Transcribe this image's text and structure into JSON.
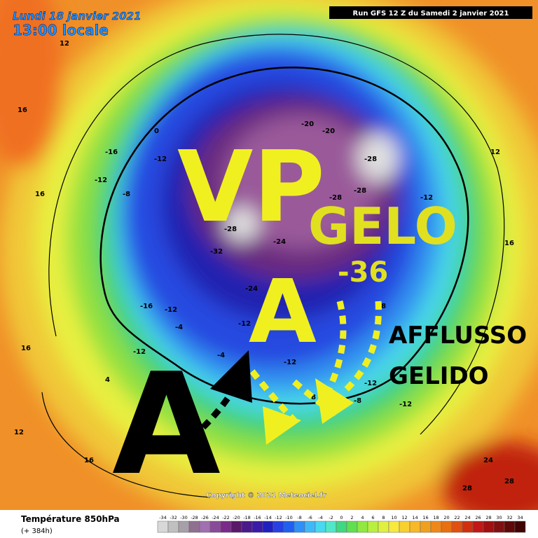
{
  "header": {
    "date": "Lundi 18 janvier 2021",
    "time": "13:00 locale",
    "run": "Run GFS 12 Z du Samedi 2 janvier 2021"
  },
  "annotations": {
    "vortex": "VP",
    "frost": "GELO",
    "frost_value": "-36",
    "high_center": "A",
    "high_left": "A",
    "inflow_1": "AFFLUSSO",
    "inflow_2": "GELIDO"
  },
  "contour_labels": [
    -28,
    -24,
    -20,
    -28,
    -32,
    -28,
    -24,
    -28,
    -20,
    -16,
    -12,
    -12,
    -8,
    -12,
    -16,
    -12,
    -12,
    -8,
    -4,
    -12,
    -8,
    -12,
    -12,
    -4,
    0,
    4,
    12,
    16,
    16,
    16,
    12,
    16,
    12,
    16,
    20,
    24,
    28,
    28,
    -8,
    -12
  ],
  "copyright": "Copyright © 2021 Meteociel.fr",
  "legend": {
    "title": "Température 850hPa",
    "subtitle": "(+ 384h)",
    "ticks": [
      -34,
      -32,
      -30,
      -28,
      -26,
      -24,
      -22,
      -20,
      -18,
      -16,
      -14,
      -12,
      -10,
      -8,
      -6,
      -4,
      -2,
      0,
      2,
      4,
      6,
      8,
      10,
      12,
      14,
      16,
      18,
      20,
      22,
      24,
      26,
      28,
      30,
      32,
      34
    ],
    "colors": [
      "#d8d8d8",
      "#c0c0c0",
      "#a8a0a8",
      "#907090",
      "#a070b0",
      "#8a4a9a",
      "#7a2a8a",
      "#5a1a6a",
      "#4a1a8a",
      "#3a1aa8",
      "#2020c0",
      "#2840e0",
      "#2060f0",
      "#3090f8",
      "#40b8f8",
      "#48d8f0",
      "#50e8c8",
      "#40d880",
      "#60e050",
      "#90e840",
      "#b8f040",
      "#e0f040",
      "#f8e840",
      "#f8d030",
      "#f8b828",
      "#f0a020",
      "#f08818",
      "#e87010",
      "#e05010",
      "#d03010",
      "#c01818",
      "#a01010",
      "#801010",
      "#600808",
      "#400404"
    ]
  }
}
